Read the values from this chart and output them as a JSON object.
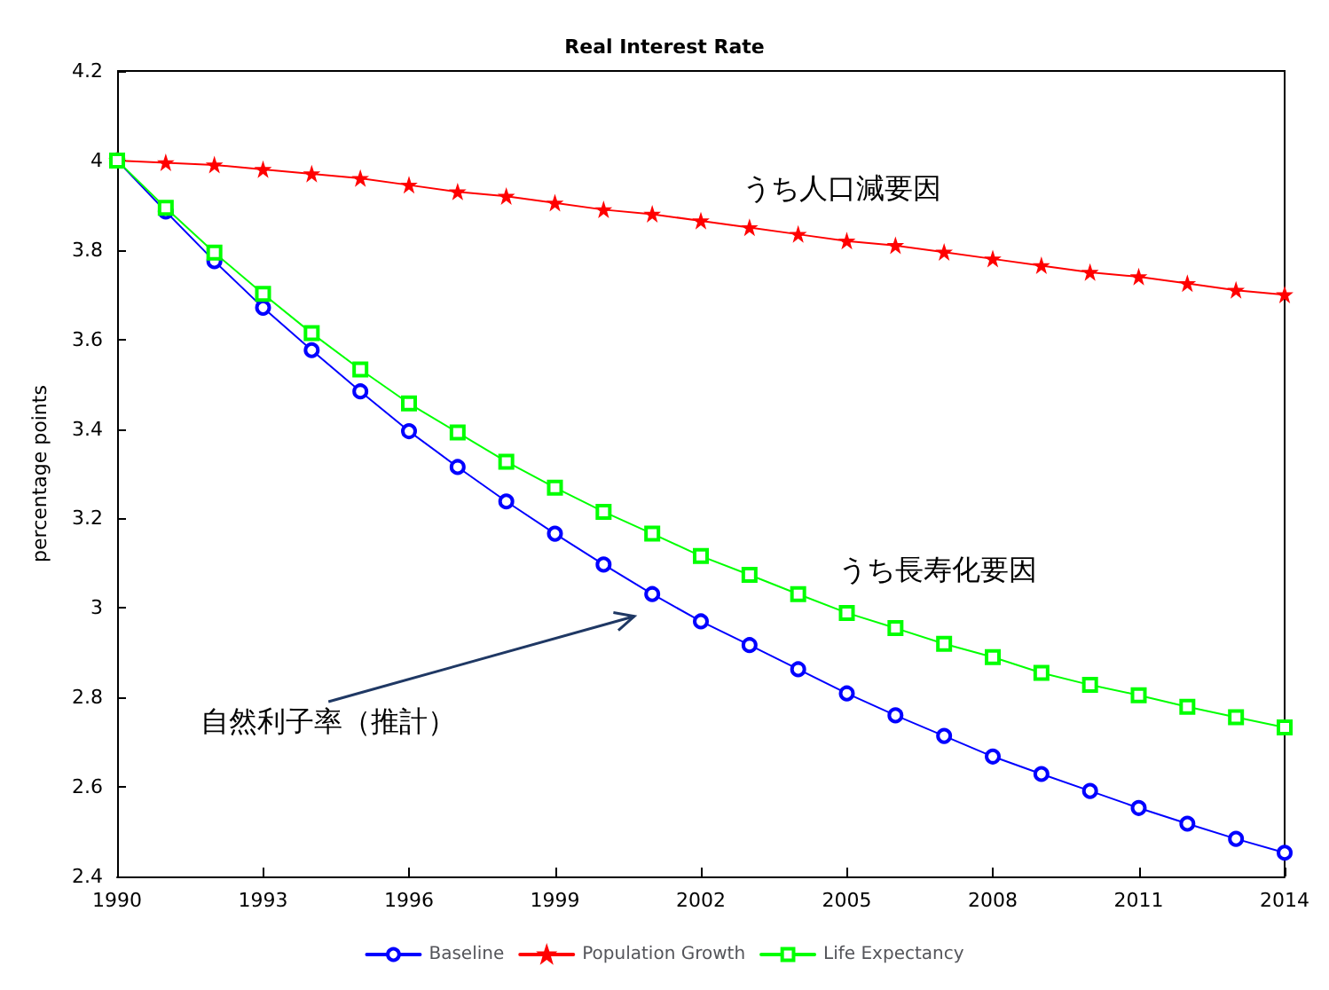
{
  "chart_data": {
    "type": "line",
    "title": "Real Interest Rate",
    "ylabel": "percentage points",
    "x": [
      1990,
      1991,
      1992,
      1993,
      1994,
      1995,
      1996,
      1997,
      1998,
      1999,
      2000,
      2001,
      2002,
      2003,
      2004,
      2005,
      2006,
      2007,
      2008,
      2009,
      2010,
      2011,
      2012,
      2013,
      2014
    ],
    "series": [
      {
        "name": "Baseline",
        "color": "#0000ff",
        "marker": "circle",
        "values": [
          4.0,
          3.886,
          3.775,
          3.671,
          3.576,
          3.484,
          3.395,
          3.315,
          3.238,
          3.166,
          3.097,
          3.031,
          2.97,
          2.917,
          2.863,
          2.809,
          2.76,
          2.714,
          2.668,
          2.629,
          2.591,
          2.553,
          2.518,
          2.484,
          2.453
        ]
      },
      {
        "name": "Population Growth",
        "color": "#ff0000",
        "marker": "star",
        "values": [
          4.0,
          3.995,
          3.99,
          3.98,
          3.97,
          3.96,
          3.945,
          3.93,
          3.92,
          3.905,
          3.89,
          3.88,
          3.865,
          3.85,
          3.835,
          3.82,
          3.81,
          3.795,
          3.78,
          3.765,
          3.75,
          3.74,
          3.725,
          3.71,
          3.7
        ]
      },
      {
        "name": "Life Expectancy",
        "color": "#00ff00",
        "marker": "square",
        "values": [
          4.0,
          3.894,
          3.794,
          3.702,
          3.614,
          3.533,
          3.457,
          3.392,
          3.327,
          3.269,
          3.215,
          3.166,
          3.116,
          3.074,
          3.031,
          2.989,
          2.955,
          2.92,
          2.89,
          2.855,
          2.828,
          2.805,
          2.779,
          2.756,
          2.733
        ]
      }
    ],
    "xlim": [
      1990,
      2014
    ],
    "xticks": [
      1990,
      1993,
      1996,
      1999,
      2002,
      2005,
      2008,
      2011,
      2014
    ],
    "ylim": [
      2.4,
      4.2
    ],
    "yticks": [
      2.4,
      2.6,
      2.8,
      3,
      3.2,
      3.4,
      3.6,
      3.8,
      4,
      4.2
    ],
    "annotations": [
      "うち人口減要因",
      "うち長寿化要因",
      "自然利子率（推計）"
    ],
    "grid": false,
    "legend": "bottom",
    "line_style": "solid"
  }
}
